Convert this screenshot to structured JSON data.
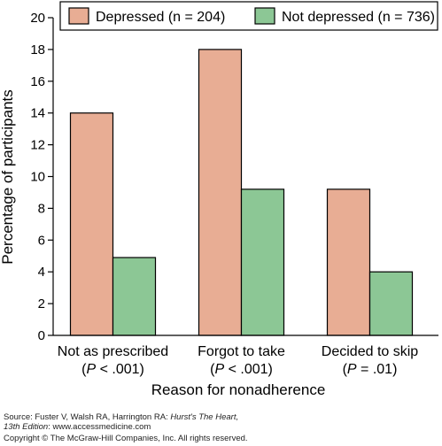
{
  "chart_data": {
    "type": "bar",
    "categories": [
      "Not as prescribed",
      "Forgot to take",
      "Decided to skip"
    ],
    "category_notes": [
      {
        "prefix": "(",
        "var": "P",
        "op": " < ",
        "value": ".001",
        "suffix": ")"
      },
      {
        "prefix": "(",
        "var": "P",
        "op": " < ",
        "value": ".001",
        "suffix": ")"
      },
      {
        "prefix": "(",
        "var": "P",
        "op": " = ",
        "value": ".01",
        "suffix": ")"
      }
    ],
    "series": [
      {
        "name": "Depressed (n = 204)",
        "values": [
          14,
          18,
          9.2
        ],
        "color": "#e8ad94"
      },
      {
        "name": "Not depressed (n = 736)",
        "values": [
          4.9,
          9.2,
          4.0
        ],
        "color": "#8cc795"
      }
    ],
    "xlabel": "Reason for nonadherence",
    "ylabel": "Percentage of participants",
    "ylim": [
      0,
      20
    ],
    "yticks": [
      0,
      2,
      4,
      6,
      8,
      10,
      12,
      14,
      16,
      18,
      20
    ],
    "legend_position": "top-right",
    "grid": false
  },
  "footer": {
    "source_prefix": "Source: Fuster V, Walsh RA, Harrington RA: ",
    "source_title_1": "Hurst's The Heart,",
    "source_title_2": "13th Edition",
    "source_suffix": ": www.accessmedicine.com",
    "copyright": "Copyright © The McGraw-Hill Companies, Inc. All rights reserved."
  }
}
